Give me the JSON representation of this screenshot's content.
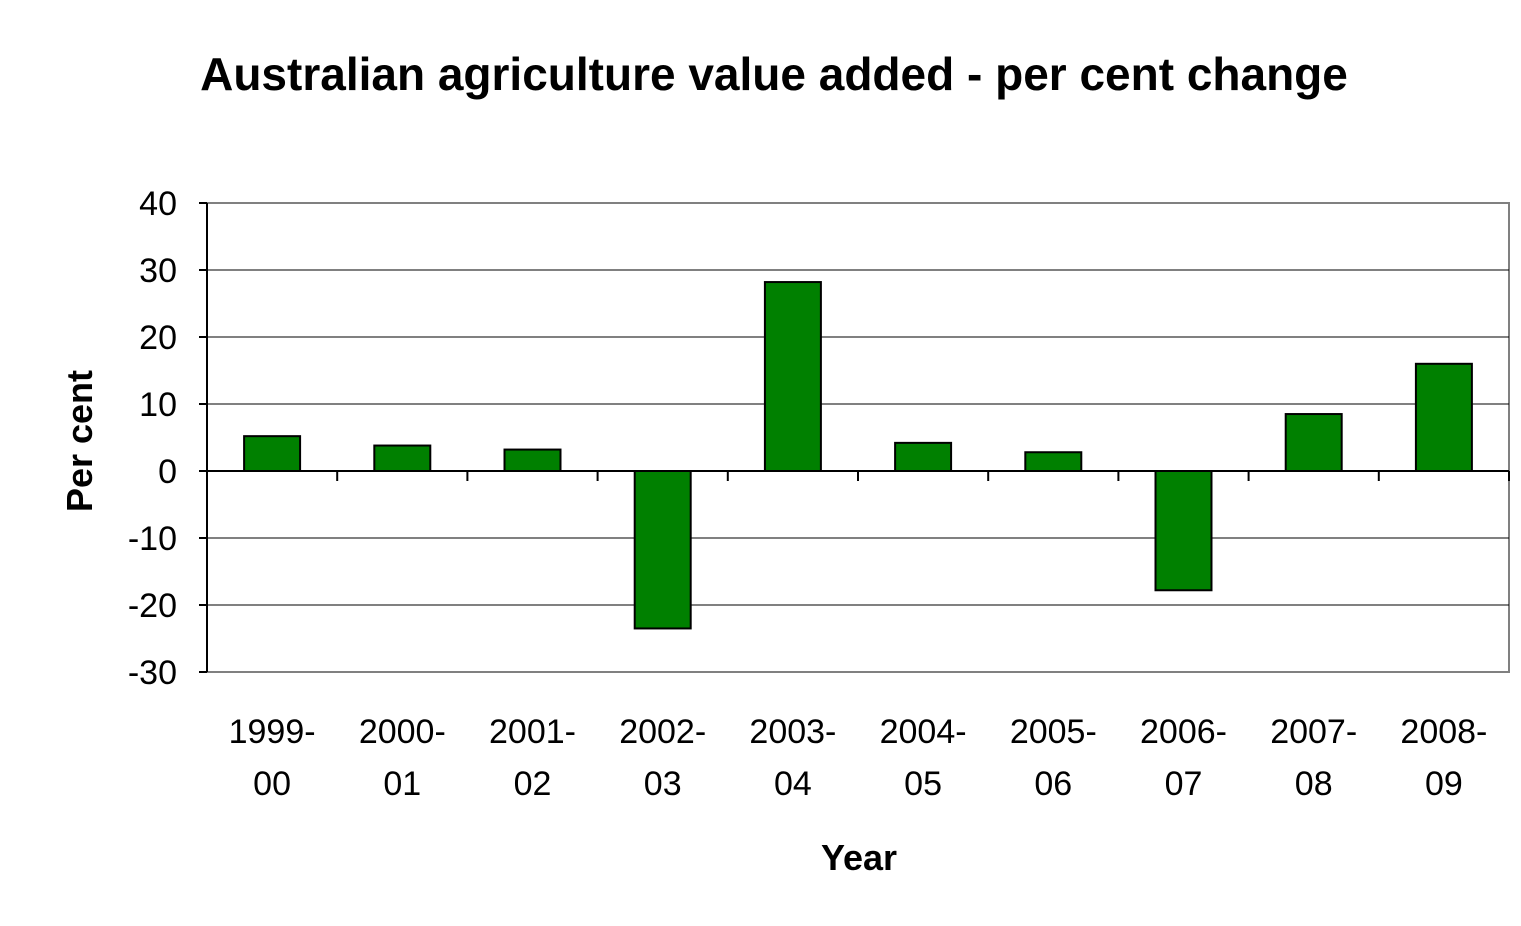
{
  "chart_data": {
    "type": "bar",
    "title": "Australian agriculture value added - per cent change",
    "xlabel": "Year",
    "ylabel": "Per cent",
    "categories": [
      [
        "1999-",
        "00"
      ],
      [
        "2000-",
        "01"
      ],
      [
        "2001-",
        "02"
      ],
      [
        "2002-",
        "03"
      ],
      [
        "2003-",
        "04"
      ],
      [
        "2004-",
        "05"
      ],
      [
        "2005-",
        "06"
      ],
      [
        "2006-",
        "07"
      ],
      [
        "2007-",
        "08"
      ],
      [
        "2008-",
        "09"
      ]
    ],
    "values": [
      5.2,
      3.8,
      3.2,
      -23.5,
      28.2,
      4.2,
      2.8,
      -17.8,
      8.5,
      16.0
    ],
    "ylim": [
      -30,
      40
    ],
    "yticks": [
      40,
      30,
      20,
      10,
      0,
      -10,
      -20,
      -30
    ],
    "grid": true,
    "legend": "none",
    "colors": {
      "bar_fill": "#008000",
      "bar_stroke": "#000000",
      "frame_background": "#ffffff",
      "frame_border": "#ffffff",
      "plot_background": "#ffffff",
      "plot_border": "#808080",
      "grid": "#000000"
    }
  }
}
